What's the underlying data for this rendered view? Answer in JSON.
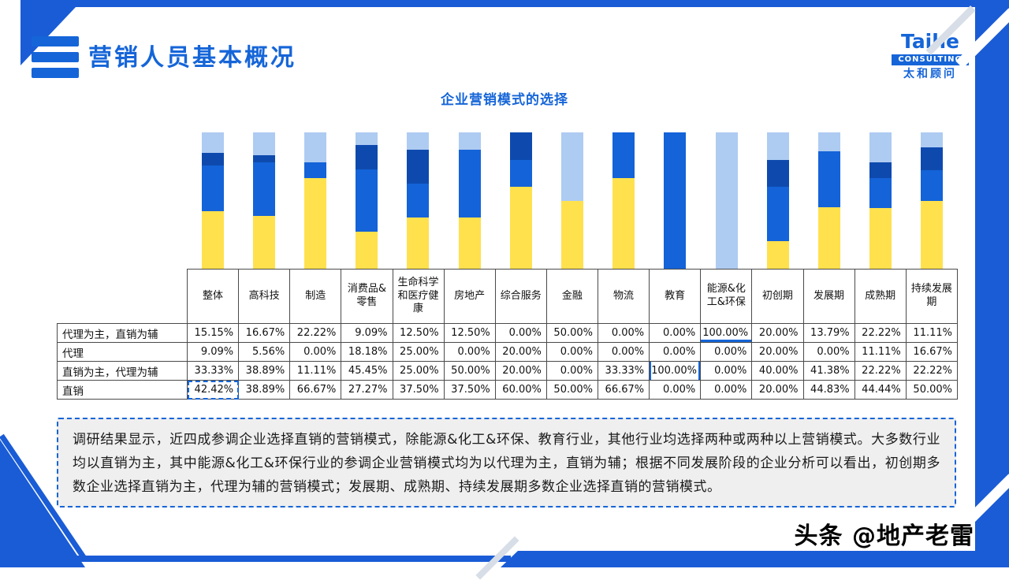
{
  "slide": {
    "title": "营销人员基本概况",
    "logo": {
      "brand": "Taihe",
      "sub": "CONSULTING",
      "cn": "太和顾问"
    },
    "watermark": "头条 @地产老雷"
  },
  "chart_data": {
    "type": "bar",
    "stacked": true,
    "percent_stacked": true,
    "title": "企业营销模式的选择",
    "ylim": [
      0,
      100
    ],
    "unit": "%",
    "grid": false,
    "legend_position": "none (values shown in attached data table)",
    "categories": [
      "整体",
      "高科技",
      "制造",
      "消费品&零售",
      "生命科学和医疗健康",
      "房地产",
      "综合服务",
      "金融",
      "物流",
      "教育",
      "能源&化工&环保",
      "初创期",
      "发展期",
      "成熟期",
      "持续发展期"
    ],
    "series": [
      {
        "name": "直销",
        "color": "#FFE14D",
        "values": [
          42.42,
          38.89,
          66.67,
          27.27,
          37.5,
          37.5,
          60,
          50,
          66.67,
          0,
          0,
          20,
          44.83,
          44.44,
          50
        ]
      },
      {
        "name": "直销为主，代理为辅",
        "color": "#1463D8",
        "values": [
          33.33,
          38.89,
          11.11,
          45.45,
          25,
          50,
          20,
          0,
          33.33,
          100,
          0,
          40,
          41.38,
          22.22,
          22.22
        ]
      },
      {
        "name": "代理",
        "color": "#0E4AAE",
        "values": [
          9.09,
          5.56,
          0,
          18.18,
          25,
          0,
          20,
          0,
          0,
          0,
          0,
          20,
          0,
          11.11,
          16.67
        ]
      },
      {
        "name": "代理为主，直销为辅",
        "color": "#AECBF2",
        "values": [
          15.15,
          16.67,
          22.22,
          9.09,
          12.5,
          12.5,
          0,
          50,
          0,
          0,
          100,
          20,
          13.79,
          22.22,
          11.11
        ]
      }
    ],
    "table_row_order": [
      "代理为主，直销为辅",
      "代理",
      "直销为主，代理为辅",
      "直销"
    ],
    "value_format": "percent-2dp",
    "table_highlights": [
      {
        "series": "直销",
        "category": "整体",
        "style": "dashed-box"
      },
      {
        "series": "代理为主，直销为辅",
        "category": "能源&化工&环保",
        "style": "underline"
      },
      {
        "series": "直销为主，代理为辅",
        "category": "教育",
        "style": "side-borders"
      }
    ]
  },
  "summary": {
    "text": "调研结果显示，近四成参调企业选择直销的营销模式，除能源&化工&环保、教育行业，其他行业均选择两种或两种以上营销模式。大多数行业均以直销为主，其中能源&化工&环保行业的参调企业营销模式均为以代理为主，直销为辅；根据不同发展阶段的企业分析可以看出，初创期多数企业选择直销为主，代理为辅的营销模式；发展期、成熟期、持续发展期多数企业选择直销的营销模式。"
  },
  "colors": {
    "frame_blue": "#1A5CD6",
    "accent_blue": "#1565D8",
    "summary_bg": "#EFEFEF"
  }
}
